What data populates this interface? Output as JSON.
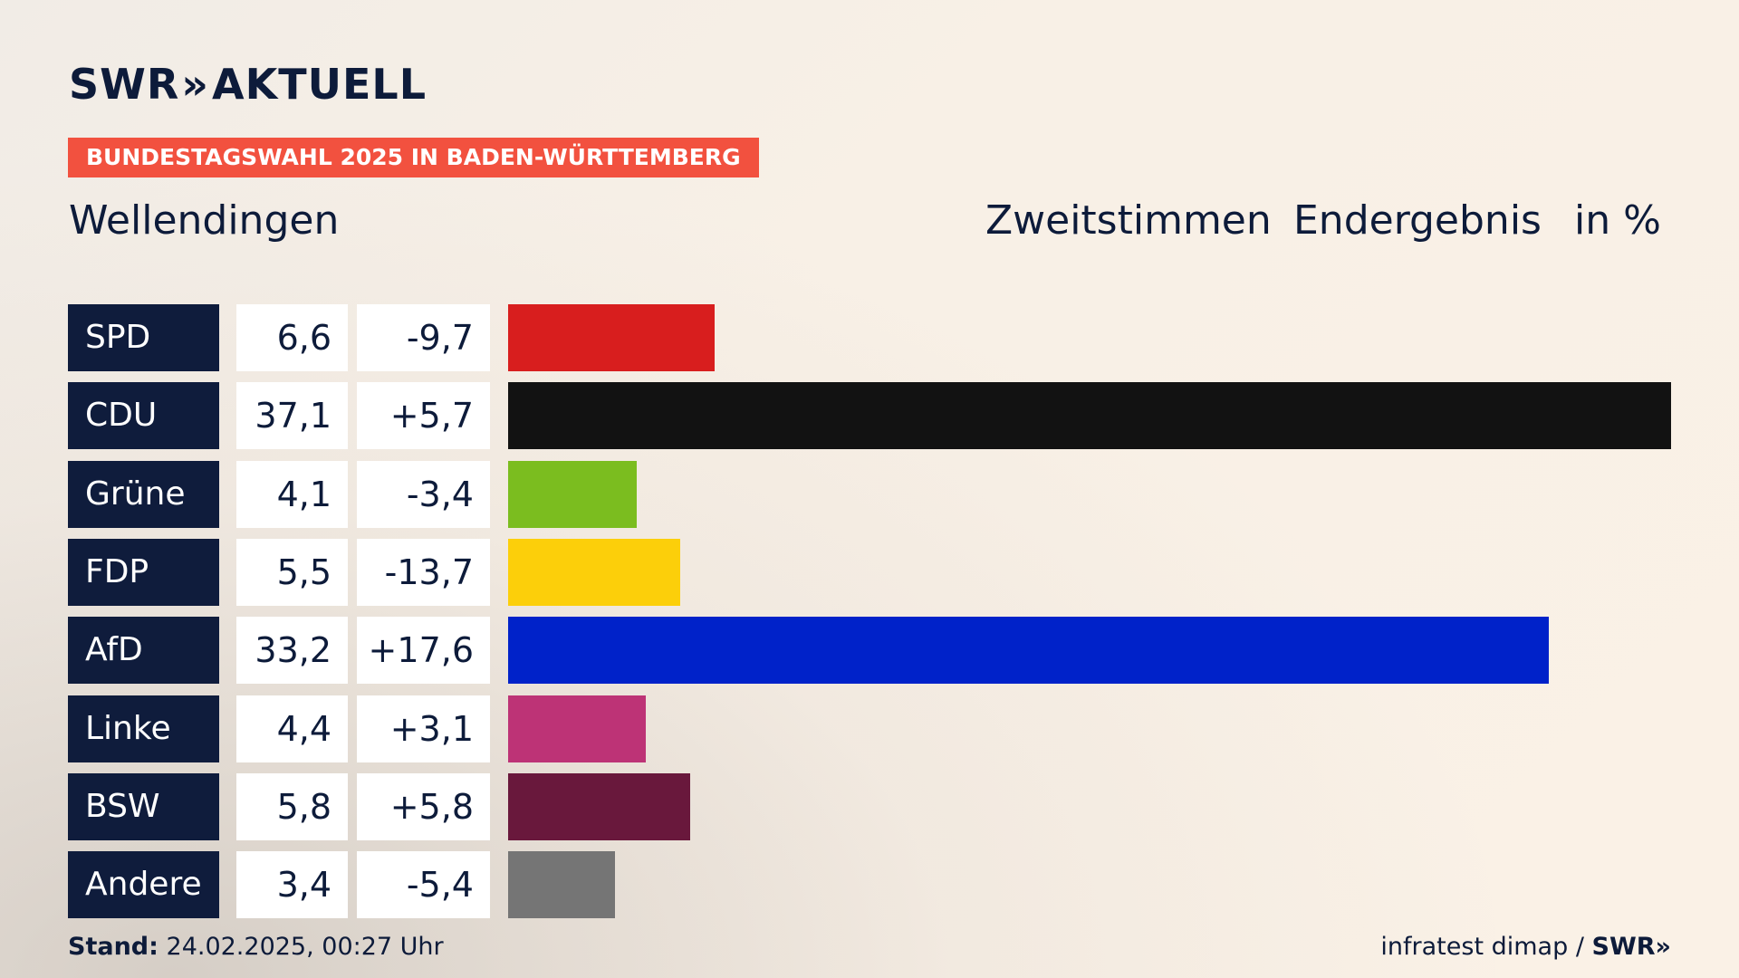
{
  "brand": {
    "logo_text": "SWR",
    "logo_chevrons": "»",
    "logo_suffix": "AKTUELL"
  },
  "banner": "BUNDESTAGSWAHL 2025 IN BADEN-WÜRTTEMBERG",
  "place": "Wellendingen",
  "headers": {
    "vote_type": "Zweitstimmen",
    "status": "Endergebnis",
    "unit": "in %"
  },
  "footer": {
    "stand_label": "Stand:",
    "stand_value": "24.02.2025, 00:27 Uhr",
    "source": "infratest dimap /",
    "source_brand": "SWR»"
  },
  "chart_data": {
    "type": "bar",
    "orientation": "horizontal",
    "categories": [
      "SPD",
      "CDU",
      "Grüne",
      "FDP",
      "AfD",
      "Linke",
      "BSW",
      "Andere"
    ],
    "values": [
      6.6,
      37.1,
      4.1,
      5.5,
      33.2,
      4.4,
      5.8,
      3.4
    ],
    "value_labels": [
      "6,6",
      "37,1",
      "4,1",
      "5,5",
      "33,2",
      "4,4",
      "5,8",
      "3,4"
    ],
    "differences": [
      -9.7,
      5.7,
      -3.4,
      -13.7,
      17.6,
      3.1,
      5.8,
      -5.4
    ],
    "difference_labels": [
      "-9,7",
      "+5,7",
      "-3,4",
      "-13,7",
      "+17,6",
      "+3,1",
      "+5,8",
      "-5,4"
    ],
    "colors": [
      "#d81e1e",
      "#121212",
      "#7bbd1f",
      "#fccf0a",
      "#0022c9",
      "#bd3376",
      "#69183c",
      "#757575"
    ],
    "xlim": [
      0,
      37.1
    ]
  }
}
